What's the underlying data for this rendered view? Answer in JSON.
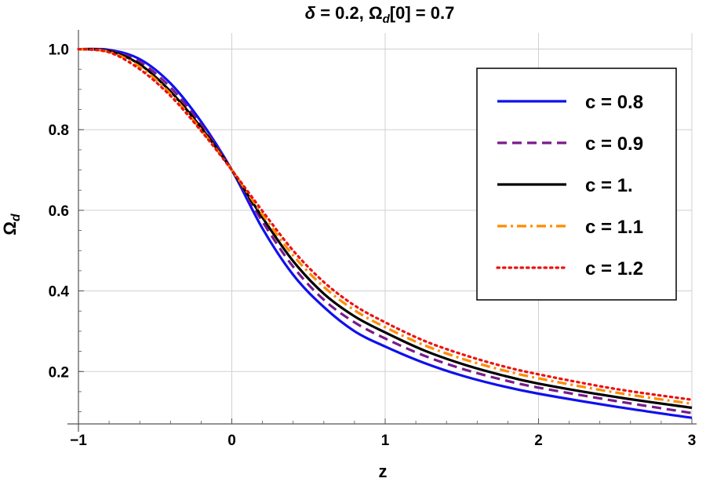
{
  "chart_data": {
    "type": "line",
    "title": "δ = 0.2, Ω_d[0] = 0.7",
    "title_parts": {
      "delta": "δ",
      "eq1": " = 0.2, ",
      "omega": "Ω",
      "sub": "d",
      "rest": "[0] = 0.7"
    },
    "xlabel": "z",
    "ylabel_symbol": "Ω",
    "ylabel_sub": "d",
    "xlim": [
      -1,
      3
    ],
    "ylim": [
      0.07,
      1.04
    ],
    "x_ticks": [
      -1,
      0,
      1,
      2,
      3
    ],
    "x_tick_labels": [
      "−1",
      "0",
      "1",
      "2",
      "3"
    ],
    "y_ticks": [
      0.2,
      0.4,
      0.6,
      0.8,
      1.0
    ],
    "y_tick_labels": [
      "0.2",
      "0.4",
      "0.6",
      "0.8",
      "1.0"
    ],
    "grid": true,
    "legend_position": "top-right",
    "x": [
      -1,
      -0.8,
      -0.6,
      -0.4,
      -0.2,
      0,
      0.2,
      0.4,
      0.6,
      0.8,
      1.0,
      1.25,
      1.5,
      1.75,
      2.0,
      2.5,
      3.0
    ],
    "series": [
      {
        "name": "c = 0.8",
        "color": "#1010ee",
        "dash": "solid",
        "values": [
          1.0,
          0.998,
          0.975,
          0.915,
          0.82,
          0.7,
          0.555,
          0.44,
          0.36,
          0.3,
          0.262,
          0.222,
          0.19,
          0.165,
          0.145,
          0.113,
          0.085
        ]
      },
      {
        "name": "c = 0.9",
        "color": "#7a1a8c",
        "dash": "dashed",
        "values": [
          1.0,
          0.996,
          0.968,
          0.905,
          0.812,
          0.7,
          0.572,
          0.46,
          0.378,
          0.322,
          0.282,
          0.24,
          0.207,
          0.181,
          0.16,
          0.127,
          0.097
        ]
      },
      {
        "name": "c = 1.",
        "color": "#000000",
        "dash": "solid",
        "values": [
          1.0,
          0.995,
          0.962,
          0.895,
          0.805,
          0.7,
          0.582,
          0.474,
          0.393,
          0.337,
          0.297,
          0.253,
          0.219,
          0.192,
          0.17,
          0.137,
          0.11
        ]
      },
      {
        "name": "c = 1.1",
        "color": "#ff8c00",
        "dash": "dashdot",
        "values": [
          1.0,
          0.993,
          0.956,
          0.889,
          0.8,
          0.7,
          0.59,
          0.488,
          0.41,
          0.352,
          0.31,
          0.266,
          0.232,
          0.205,
          0.183,
          0.148,
          0.12
        ]
      },
      {
        "name": "c = 1.2",
        "color": "#ee1111",
        "dash": "dotted",
        "values": [
          1.0,
          0.992,
          0.95,
          0.884,
          0.797,
          0.7,
          0.598,
          0.5,
          0.422,
          0.364,
          0.322,
          0.277,
          0.243,
          0.215,
          0.193,
          0.157,
          0.13
        ]
      }
    ]
  }
}
